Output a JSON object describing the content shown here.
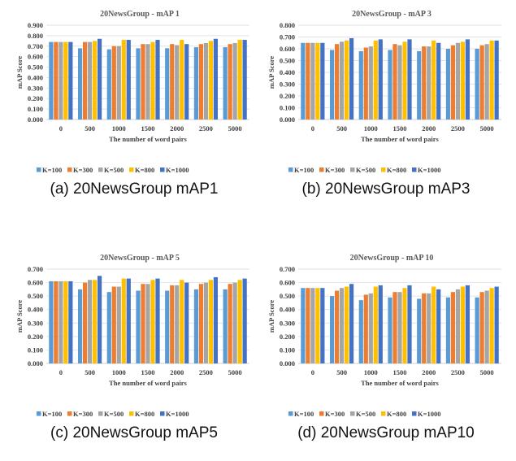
{
  "colors": {
    "K=100": "#5B9BD5",
    "K=300": "#ED7D31",
    "K=500": "#A5A5A5",
    "K=800": "#FFC000",
    "K=1000": "#4472C4"
  },
  "chart_data": [
    {
      "type": "bar",
      "title": "20NewsGroup - mAP 1",
      "caption": "(a) 20NewsGroup mAP1",
      "xlabel": "The number of word pairs",
      "ylabel": "mAP Score",
      "ylim": [
        0,
        0.9
      ],
      "yticks": [
        "0.000",
        "0.100",
        "0.200",
        "0.300",
        "0.400",
        "0.500",
        "0.600",
        "0.700",
        "0.800",
        "0.900"
      ],
      "categories": [
        "0",
        "500",
        "1000",
        "1500",
        "2000",
        "2500",
        "5000"
      ],
      "series": [
        {
          "name": "K=100",
          "values": [
            0.74,
            0.68,
            0.67,
            0.68,
            0.68,
            0.69,
            0.69
          ]
        },
        {
          "name": "K=300",
          "values": [
            0.74,
            0.74,
            0.7,
            0.72,
            0.72,
            0.72,
            0.72
          ]
        },
        {
          "name": "K=500",
          "values": [
            0.74,
            0.74,
            0.7,
            0.72,
            0.71,
            0.73,
            0.73
          ]
        },
        {
          "name": "K=800",
          "values": [
            0.74,
            0.75,
            0.76,
            0.74,
            0.76,
            0.75,
            0.76
          ]
        },
        {
          "name": "K=1000",
          "values": [
            0.74,
            0.77,
            0.76,
            0.76,
            0.72,
            0.77,
            0.76
          ]
        }
      ],
      "legend": "bottom"
    },
    {
      "type": "bar",
      "title": "20NewsGroup - mAP 3",
      "caption": "(b) 20NewsGroup mAP3",
      "xlabel": "The number of word pairs",
      "ylabel": "mAP Score",
      "ylim": [
        0,
        0.8
      ],
      "yticks": [
        "0.000",
        "0.100",
        "0.200",
        "0.300",
        "0.400",
        "0.500",
        "0.600",
        "0.700",
        "0.800"
      ],
      "categories": [
        "0",
        "500",
        "1000",
        "1500",
        "2000",
        "2500",
        "5000"
      ],
      "series": [
        {
          "name": "K=100",
          "values": [
            0.65,
            0.59,
            0.58,
            0.59,
            0.58,
            0.6,
            0.6
          ]
        },
        {
          "name": "K=300",
          "values": [
            0.65,
            0.64,
            0.61,
            0.64,
            0.62,
            0.63,
            0.63
          ]
        },
        {
          "name": "K=500",
          "values": [
            0.65,
            0.66,
            0.62,
            0.63,
            0.62,
            0.65,
            0.64
          ]
        },
        {
          "name": "K=800",
          "values": [
            0.65,
            0.67,
            0.67,
            0.66,
            0.67,
            0.66,
            0.67
          ]
        },
        {
          "name": "K=1000",
          "values": [
            0.65,
            0.69,
            0.68,
            0.68,
            0.65,
            0.68,
            0.67
          ]
        }
      ],
      "legend": "bottom"
    },
    {
      "type": "bar",
      "title": "20NewsGroup - mAP 5",
      "caption": "(c) 20NewsGroup mAP5",
      "xlabel": "The number of word pairs",
      "ylabel": "mAP Score",
      "ylim": [
        0,
        0.7
      ],
      "yticks": [
        "0.000",
        "0.100",
        "0.200",
        "0.300",
        "0.400",
        "0.500",
        "0.600",
        "0.700"
      ],
      "categories": [
        "0",
        "500",
        "1000",
        "1500",
        "2000",
        "2500",
        "5000"
      ],
      "series": [
        {
          "name": "K=100",
          "values": [
            0.61,
            0.55,
            0.53,
            0.54,
            0.54,
            0.55,
            0.55
          ]
        },
        {
          "name": "K=300",
          "values": [
            0.61,
            0.6,
            0.57,
            0.59,
            0.58,
            0.59,
            0.59
          ]
        },
        {
          "name": "K=500",
          "values": [
            0.61,
            0.62,
            0.57,
            0.59,
            0.58,
            0.6,
            0.6
          ]
        },
        {
          "name": "K=800",
          "values": [
            0.61,
            0.62,
            0.63,
            0.62,
            0.62,
            0.62,
            0.62
          ]
        },
        {
          "name": "K=1000",
          "values": [
            0.61,
            0.65,
            0.63,
            0.63,
            0.6,
            0.64,
            0.63
          ]
        }
      ],
      "legend": "bottom"
    },
    {
      "type": "bar",
      "title": "20NewsGroup - mAP 10",
      "caption": "(d) 20NewsGroup mAP10",
      "xlabel": "The number of word pairs",
      "ylabel": "mAP Score",
      "ylim": [
        0,
        0.7
      ],
      "yticks": [
        "0.000",
        "0.100",
        "0.200",
        "0.300",
        "0.400",
        "0.500",
        "0.600",
        "0.700"
      ],
      "categories": [
        "0",
        "500",
        "1000",
        "1500",
        "2000",
        "2500",
        "5000"
      ],
      "series": [
        {
          "name": "K=100",
          "values": [
            0.56,
            0.5,
            0.47,
            0.49,
            0.48,
            0.49,
            0.49
          ]
        },
        {
          "name": "K=300",
          "values": [
            0.56,
            0.54,
            0.51,
            0.53,
            0.52,
            0.53,
            0.53
          ]
        },
        {
          "name": "K=500",
          "values": [
            0.56,
            0.56,
            0.52,
            0.53,
            0.52,
            0.55,
            0.54
          ]
        },
        {
          "name": "K=800",
          "values": [
            0.56,
            0.57,
            0.57,
            0.56,
            0.57,
            0.57,
            0.56
          ]
        },
        {
          "name": "K=1000",
          "values": [
            0.56,
            0.59,
            0.58,
            0.58,
            0.55,
            0.58,
            0.57
          ]
        }
      ],
      "legend": "bottom"
    }
  ]
}
